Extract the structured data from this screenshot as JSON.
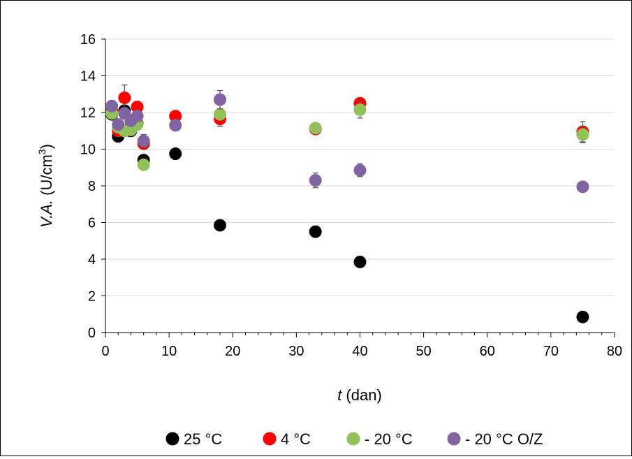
{
  "chart_data": {
    "type": "scatter",
    "xlabel_italic": "t",
    "xlabel_rest": " (dan)",
    "ylabel_italic": "V.A.",
    "ylabel_rest": " (U/cm",
    "ylabel_sup": "3",
    "ylabel_close": ")",
    "xlim": [
      0,
      80
    ],
    "ylim": [
      0,
      16
    ],
    "xticks": [
      0,
      10,
      20,
      30,
      40,
      50,
      60,
      70,
      80
    ],
    "yticks": [
      0,
      2,
      4,
      6,
      8,
      10,
      12,
      14,
      16
    ],
    "grid": "horizontal",
    "legend_position": "bottom",
    "series": [
      {
        "name": "25 °C",
        "color": "#000000",
        "points": [
          {
            "x": 1,
            "y": 11.9,
            "err": 0.3
          },
          {
            "x": 2,
            "y": 10.7,
            "err": 0.3
          },
          {
            "x": 3,
            "y": 12.1,
            "err": 0.3
          },
          {
            "x": 4,
            "y": 11.0,
            "err": 0.3
          },
          {
            "x": 5,
            "y": 11.4,
            "err": 0.3
          },
          {
            "x": 6,
            "y": 9.4,
            "err": 0.3
          },
          {
            "x": 11,
            "y": 9.75,
            "err": 0.3
          },
          {
            "x": 18,
            "y": 5.85,
            "err": 0.1
          },
          {
            "x": 33,
            "y": 5.5,
            "err": 0.1
          },
          {
            "x": 40,
            "y": 3.85,
            "err": 0.1
          },
          {
            "x": 75,
            "y": 0.85,
            "err": 0.1
          }
        ]
      },
      {
        "name": "4 °C",
        "color": "#ff0000",
        "points": [
          {
            "x": 1,
            "y": 12.1,
            "err": 0.3
          },
          {
            "x": 2,
            "y": 11.0,
            "err": 0.3
          },
          {
            "x": 3,
            "y": 12.8,
            "err": 0.7
          },
          {
            "x": 4,
            "y": 11.3,
            "err": 0.3
          },
          {
            "x": 5,
            "y": 12.3,
            "err": 0.3
          },
          {
            "x": 6,
            "y": 10.3,
            "err": 0.3
          },
          {
            "x": 11,
            "y": 11.8,
            "err": 0.2
          },
          {
            "x": 18,
            "y": 11.65,
            "err": 0.4
          },
          {
            "x": 33,
            "y": 11.1,
            "err": 0.2
          },
          {
            "x": 40,
            "y": 12.5,
            "err": 0.2
          },
          {
            "x": 75,
            "y": 10.95,
            "err": 0.55
          }
        ]
      },
      {
        "name": "- 20 °C",
        "color": "#92c059",
        "points": [
          {
            "x": 1,
            "y": 11.95,
            "err": 0.3
          },
          {
            "x": 2,
            "y": 11.2,
            "err": 0.3
          },
          {
            "x": 3,
            "y": 11.0,
            "err": 0.3
          },
          {
            "x": 4,
            "y": 11.05,
            "err": 0.3
          },
          {
            "x": 5,
            "y": 11.35,
            "err": 0.3
          },
          {
            "x": 6,
            "y": 9.15,
            "err": 0.2
          },
          {
            "x": 18,
            "y": 11.9,
            "err": 0.3
          },
          {
            "x": 33,
            "y": 11.15,
            "err": 0.2
          },
          {
            "x": 40,
            "y": 12.15,
            "err": 0.45
          },
          {
            "x": 75,
            "y": 10.8,
            "err": 0.45
          }
        ]
      },
      {
        "name": "- 20 °C O/Z",
        "color": "#8064a2",
        "points": [
          {
            "x": 1,
            "y": 12.35,
            "err": 0.3
          },
          {
            "x": 2,
            "y": 11.35,
            "err": 0.3
          },
          {
            "x": 3,
            "y": 11.95,
            "err": 0.3
          },
          {
            "x": 4,
            "y": 11.55,
            "err": 0.3
          },
          {
            "x": 5,
            "y": 11.8,
            "err": 0.3
          },
          {
            "x": 6,
            "y": 10.45,
            "err": 0.35
          },
          {
            "x": 11,
            "y": 11.3,
            "err": 0.2
          },
          {
            "x": 18,
            "y": 12.7,
            "err": 0.5
          },
          {
            "x": 33,
            "y": 8.3,
            "err": 0.4
          },
          {
            "x": 40,
            "y": 8.85,
            "err": 0.35
          },
          {
            "x": 75,
            "y": 7.95,
            "err": 0.1
          }
        ]
      }
    ]
  }
}
